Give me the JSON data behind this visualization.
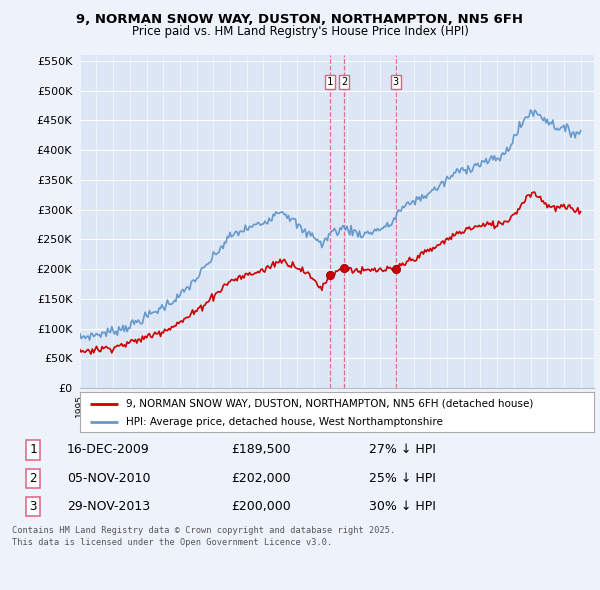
{
  "title_line1": "9, NORMAN SNOW WAY, DUSTON, NORTHAMPTON, NN5 6FH",
  "title_line2": "Price paid vs. HM Land Registry's House Price Index (HPI)",
  "ylim": [
    0,
    560000
  ],
  "yticks": [
    0,
    50000,
    100000,
    150000,
    200000,
    250000,
    300000,
    350000,
    400000,
    450000,
    500000,
    550000
  ],
  "background_color": "#eef2fa",
  "plot_bg": "#dde6f5",
  "legend_label_red": "9, NORMAN SNOW WAY, DUSTON, NORTHAMPTON, NN5 6FH (detached house)",
  "legend_label_blue": "HPI: Average price, detached house, West Northamptonshire",
  "transaction_labels": [
    "1",
    "2",
    "3"
  ],
  "transaction_dates": [
    "16-DEC-2009",
    "05-NOV-2010",
    "29-NOV-2013"
  ],
  "transaction_prices": [
    189500,
    202000,
    200000
  ],
  "transaction_prices_str": [
    "£189,500",
    "£202,000",
    "£200,000"
  ],
  "transaction_hpi": [
    "27% ↓ HPI",
    "25% ↓ HPI",
    "30% ↓ HPI"
  ],
  "footer": "Contains HM Land Registry data © Crown copyright and database right 2025.\nThis data is licensed under the Open Government Licence v3.0.",
  "vline_color": "#e06080",
  "red_line_color": "#cc0000",
  "blue_line_color": "#6699cc",
  "grid_color": "#ffffff"
}
